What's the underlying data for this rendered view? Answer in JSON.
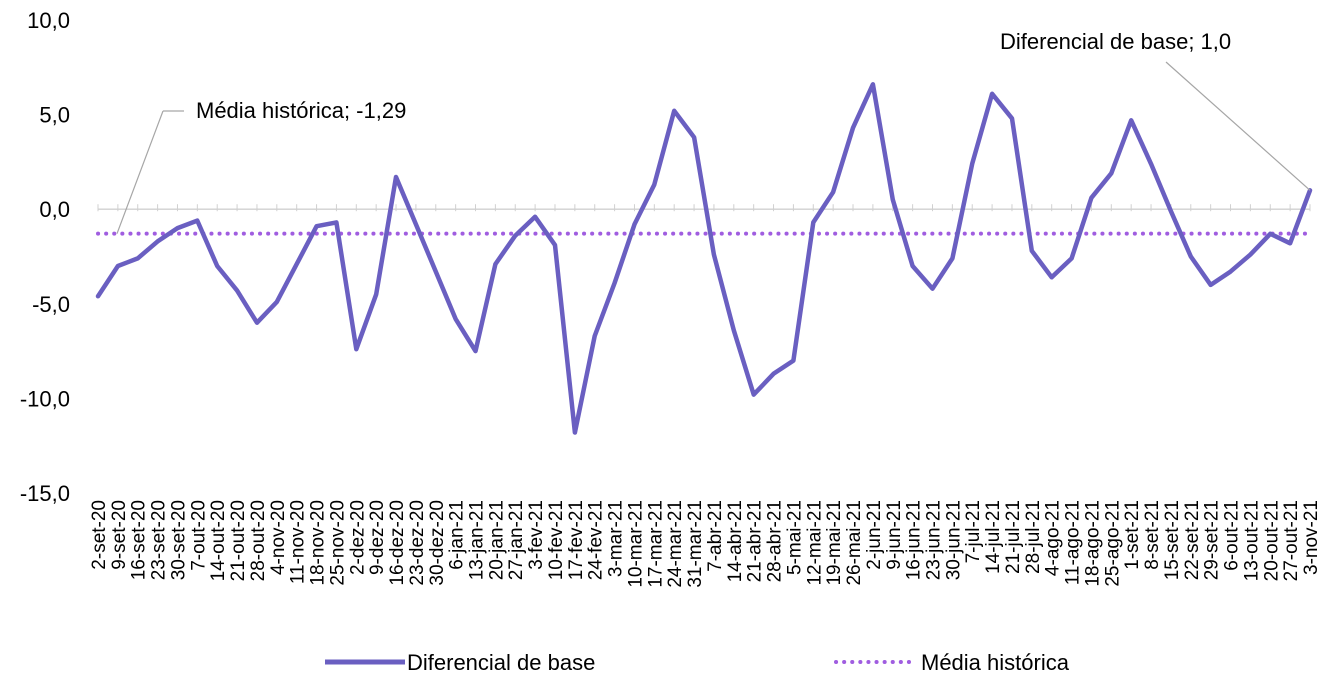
{
  "chart_data": {
    "type": "line",
    "title": "",
    "xlabel": "",
    "ylabel": "",
    "ylim": [
      -15,
      10
    ],
    "ytick_values": [
      10,
      5,
      0,
      -5,
      -10,
      -15
    ],
    "ytick_labels": [
      "10,0",
      "5,0",
      "0,0",
      "-5,0",
      "-10,0",
      "-15,0"
    ],
    "grid": false,
    "legend_position": "bottom",
    "categories": [
      "2-set-20",
      "9-set-20",
      "16-set-20",
      "23-set-20",
      "30-set-20",
      "7-out-20",
      "14-out-20",
      "21-out-20",
      "28-out-20",
      "4-nov-20",
      "11-nov-20",
      "18-nov-20",
      "25-nov-20",
      "2-dez-20",
      "9-dez-20",
      "16-dez-20",
      "23-dez-20",
      "30-dez-20",
      "6-jan-21",
      "13-jan-21",
      "20-jan-21",
      "27-jan-21",
      "3-fev-21",
      "10-fev-21",
      "17-fev-21",
      "24-fev-21",
      "3-mar-21",
      "10-mar-21",
      "17-mar-21",
      "24-mar-21",
      "31-mar-21",
      "7-abr-21",
      "14-abr-21",
      "21-abr-21",
      "28-abr-21",
      "5-mai-21",
      "12-mai-21",
      "19-mai-21",
      "26-mai-21",
      "2-jun-21",
      "9-jun-21",
      "16-jun-21",
      "23-jun-21",
      "30-jun-21",
      "7-jul-21",
      "14-jul-21",
      "21-jul-21",
      "28-jul-21",
      "4-ago-21",
      "11-ago-21",
      "18-ago-21",
      "25-ago-21",
      "1-set-21",
      "8-set-21",
      "15-set-21",
      "22-set-21",
      "29-set-21",
      "6-out-21",
      "13-out-21",
      "20-out-21",
      "27-out-21",
      "3-nov-21"
    ],
    "series": [
      {
        "name": "Diferencial de base",
        "color": "#6a5fc1",
        "style": "solid",
        "values": [
          -4.6,
          -3.0,
          -2.6,
          -1.7,
          -1.0,
          -0.6,
          -3.0,
          -4.3,
          -6.0,
          -4.9,
          -2.9,
          -0.9,
          -0.7,
          -7.4,
          -4.5,
          1.7,
          -0.8,
          -3.3,
          -5.8,
          -7.5,
          -2.9,
          -1.4,
          -0.4,
          -1.9,
          -11.8,
          -6.7,
          -3.9,
          -0.8,
          1.3,
          5.2,
          3.8,
          -2.4,
          -6.4,
          -9.8,
          -8.7,
          -8.0,
          -0.7,
          0.9,
          4.3,
          6.6,
          0.5,
          -3.0,
          -4.2,
          -2.6,
          2.4,
          6.1,
          4.8,
          -2.2,
          -3.6,
          -2.6,
          0.6,
          1.9,
          4.7,
          2.4,
          -0.1,
          -2.5,
          -4.0,
          -3.3,
          -2.4,
          -1.3,
          -1.8,
          1.0
        ]
      },
      {
        "name": "Média histórica",
        "color": "#a05de0",
        "style": "dotted",
        "value": -1.29
      }
    ],
    "annotations": {
      "media": "Média histórica; -1,29",
      "diferencial": "Diferencial de base; 1,0"
    }
  }
}
